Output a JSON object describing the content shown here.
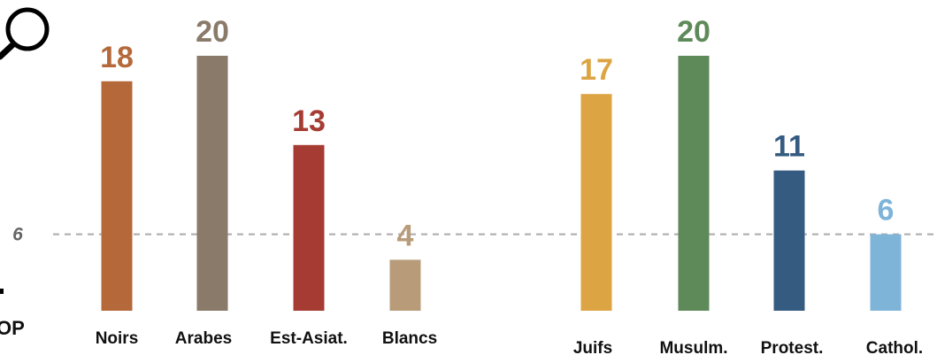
{
  "chart_data": [
    {
      "type": "bar",
      "categories": [
        "Noirs",
        "Arabes",
        "Est-Asiat.",
        "Blancs"
      ],
      "values": [
        18,
        20,
        13,
        4
      ],
      "colors": [
        "#b5693a",
        "#8a7a69",
        "#a53b32",
        "#b89c7a"
      ],
      "ylim": [
        0,
        20
      ],
      "reference_line": {
        "value": 6,
        "label": "6",
        "style": "dashed",
        "color": "#aaaaaa"
      }
    },
    {
      "type": "bar",
      "categories": [
        "Juifs",
        "Musulm.",
        "Protest.",
        "Cathol."
      ],
      "values": [
        17,
        20,
        11,
        6
      ],
      "colors": [
        "#dca443",
        "#5e8a5a",
        "#355b80",
        "#7fb4d9"
      ],
      "ylim": [
        0,
        20
      ],
      "reference_line": {
        "value": 6,
        "label": "6",
        "style": "dashed",
        "color": "#aaaaaa"
      }
    }
  ],
  "decoration": {
    "icon": "magnifying-glass-icon",
    "logo_fragment": "OP"
  }
}
